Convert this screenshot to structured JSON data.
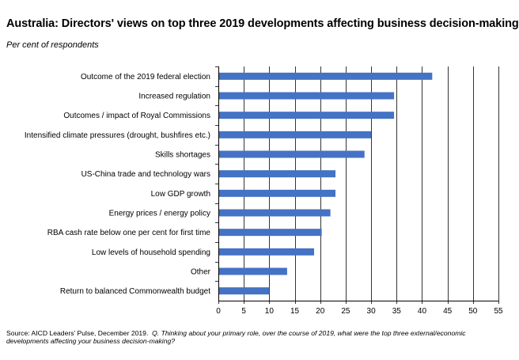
{
  "title": "Australia: Directors' views on top three 2019 developments affecting business decision-making",
  "subtitle": "Per cent of respondents",
  "source_prefix": "Source: AICD Leaders' Pulse, December 2019.",
  "source_question": "Q. Thinking about your primary role, over the course of 2019, what were the top three external/economic developments affecting your business decision-making?",
  "colors": {
    "bar": "#4472C4",
    "grid": "#000000"
  },
  "chart_data": {
    "type": "bar",
    "orientation": "horizontal",
    "title": "Australia: Directors' views on top three 2019 developments affecting business decision-making",
    "ylabel": "Per cent of respondents",
    "xlim": [
      0,
      55
    ],
    "xticks": [
      0,
      5,
      10,
      15,
      20,
      25,
      30,
      35,
      40,
      45,
      50,
      55
    ],
    "grid": true,
    "categories": [
      "Outcome of the 2019 federal election",
      "Increased regulation",
      "Outcomes / impact of Royal Commissions",
      "Intensified climate pressures (drought, bushfires etc.)",
      "Skills shortages",
      "US-China trade and technology wars",
      "Low GDP growth",
      "Energy prices / energy policy",
      "RBA cash rate below one per cent for first time",
      "Low levels of household spending",
      "Other",
      "Return to balanced Commonwealth budget"
    ],
    "values": [
      42,
      34.5,
      34.5,
      30,
      28.7,
      23,
      23,
      22,
      20.3,
      18.8,
      13.5,
      10
    ]
  }
}
